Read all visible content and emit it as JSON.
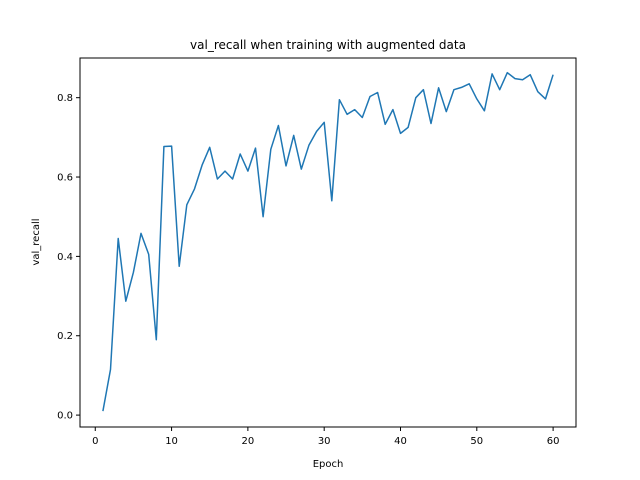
{
  "chart_data": {
    "type": "line",
    "title": "val_recall when training with augmented data",
    "xlabel": "Epoch",
    "ylabel": "val_recall",
    "xlim": [
      -2,
      63
    ],
    "ylim": [
      -0.03,
      0.9
    ],
    "xticks": [
      0,
      10,
      20,
      30,
      40,
      50,
      60
    ],
    "yticks": [
      0.0,
      0.2,
      0.4,
      0.6,
      0.8
    ],
    "ytick_labels": [
      "0.0",
      "0.2",
      "0.4",
      "0.6",
      "0.8"
    ],
    "grid": false,
    "line_color": "#1f77b4",
    "series": [
      {
        "x": [
          1,
          2,
          3,
          4,
          5,
          6,
          7,
          8,
          9,
          10,
          11,
          12,
          13,
          14,
          15,
          16,
          17,
          18,
          19,
          20,
          21,
          22,
          23,
          24,
          25,
          26,
          27,
          28,
          29,
          30,
          31,
          32,
          33,
          34,
          35,
          36,
          37,
          38,
          39,
          40,
          41,
          42,
          43,
          44,
          45,
          46,
          47,
          48,
          49,
          50,
          51,
          52,
          53,
          54,
          55,
          56,
          57,
          58,
          59,
          60
        ],
        "values": [
          0.01,
          0.115,
          0.445,
          0.287,
          0.36,
          0.458,
          0.405,
          0.19,
          0.677,
          0.678,
          0.375,
          0.53,
          0.57,
          0.63,
          0.675,
          0.595,
          0.615,
          0.595,
          0.658,
          0.615,
          0.673,
          0.5,
          0.67,
          0.73,
          0.628,
          0.705,
          0.62,
          0.68,
          0.715,
          0.738,
          0.54,
          0.795,
          0.758,
          0.77,
          0.75,
          0.803,
          0.813,
          0.733,
          0.77,
          0.71,
          0.725,
          0.8,
          0.82,
          0.735,
          0.825,
          0.765,
          0.82,
          0.826,
          0.835,
          0.797,
          0.767,
          0.86,
          0.82,
          0.863,
          0.848,
          0.845,
          0.858,
          0.815,
          0.797,
          0.858
        ]
      }
    ]
  }
}
